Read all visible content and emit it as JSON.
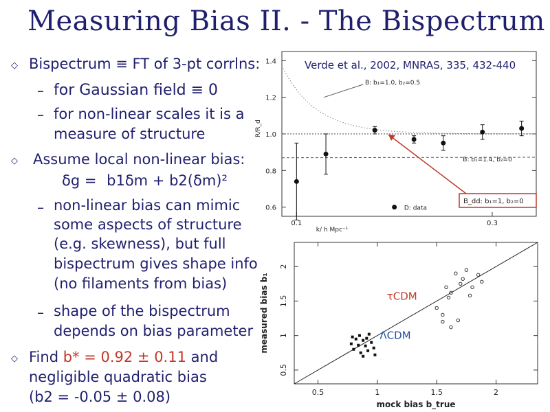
{
  "slide": {
    "title": "Measuring Bias II. - The Bispectrum",
    "bullets": {
      "b1": "Bispectrum ≡ FT of 3-pt corrlns:",
      "b1_s1": "for Gaussian field ≡ 0",
      "b1_s2a": "for non-linear scales it is a",
      "b1_s2b": "measure of structure",
      "b2": "Assume local non-linear bias:",
      "b2_eq_lhs": "δg =",
      "b2_eq_rhs": "b1δm + b2(δm)²",
      "b2_s1a": "non-linear bias can mimic",
      "b2_s1b": "some aspects of structure",
      "b2_s1c": "(e.g. skewness), but full",
      "b2_s1d": "bispectrum gives shape info",
      "b2_s1e": "(no filaments from bias)",
      "b2_s2a": "shape of the bispectrum",
      "b2_s2b": "depends on bias parameter",
      "b3_pre": "Find",
      "b3_val": "b* = 0.92 ± 0.11",
      "b3_post": "and",
      "b3_line2": "negligible quadratic bias",
      "b3_line3": "(b2 = -0.05 ± 0.08)"
    },
    "reference": "Verde et al., 2002, MNRAS, 335, 432-440",
    "colors": {
      "text": "#1f1f6e",
      "highlight": "#c0392b",
      "box": "#c0392b"
    }
  },
  "top_plot": {
    "ylabel": "R/R_d",
    "xlabel": "k/ h Mpc⁻¹",
    "y_ticks": [
      "1.4",
      "1.2",
      "1.0",
      "0.8",
      "0.6"
    ],
    "x_ticks": [
      "0.1",
      "0.3"
    ],
    "legend_upper": "B: b₁=1.0, b₂=0.5",
    "legend_lower": "B: b₁=1.4, b₂=0",
    "legend_data": "D: data",
    "boxed_label": "B_dd: b₁=1, b₂=0"
  },
  "bottom_plot": {
    "ylabel": "measured bias b₁",
    "xlabel": "mock bias b_true",
    "y_ticks": [
      "2",
      "1.5",
      "1",
      "0.5"
    ],
    "x_ticks": [
      "0.5",
      "1",
      "1.5",
      "2"
    ],
    "label_tcdm": "τCDM",
    "label_lcdm": "ΛCDM"
  },
  "chart_data": [
    {
      "type": "scatter",
      "title": "",
      "xlabel": "k/ h Mpc⁻¹",
      "ylabel": "R/R_d",
      "ylim": [
        0.55,
        1.45
      ],
      "x_tick_labels": [
        "0.1",
        "0.3"
      ],
      "series": [
        {
          "name": "D: data",
          "points": [
            {
              "x": 0.1,
              "y": 0.74,
              "err": 0.21
            },
            {
              "x": 0.13,
              "y": 0.89,
              "err": 0.11
            },
            {
              "x": 0.18,
              "y": 1.02,
              "err": 0.02
            },
            {
              "x": 0.22,
              "y": 0.97,
              "err": 0.02
            },
            {
              "x": 0.25,
              "y": 0.95,
              "err": 0.04
            },
            {
              "x": 0.29,
              "y": 1.01,
              "err": 0.04
            },
            {
              "x": 0.33,
              "y": 1.03,
              "err": 0.04
            }
          ]
        }
      ],
      "grid": false
    },
    {
      "type": "scatter",
      "title": "",
      "xlabel": "mock bias b_true",
      "ylabel": "measured bias b₁",
      "xlim": [
        0.3,
        2.35
      ],
      "ylim": [
        0.3,
        2.35
      ],
      "series": [
        {
          "name": "ΛCDM",
          "points": [
            [
              0.78,
              0.88
            ],
            [
              0.82,
              0.95
            ],
            [
              0.85,
              1.0
            ],
            [
              0.88,
              0.93
            ],
            [
              0.9,
              0.85
            ],
            [
              0.92,
              0.78
            ],
            [
              0.8,
              0.8
            ],
            [
              0.86,
              0.75
            ],
            [
              0.95,
              0.9
            ],
            [
              0.97,
              0.82
            ],
            [
              0.84,
              0.86
            ],
            [
              0.93,
              1.02
            ],
            [
              0.88,
              0.7
            ],
            [
              0.98,
              0.72
            ],
            [
              0.79,
              0.98
            ],
            [
              0.91,
              0.96
            ]
          ]
        },
        {
          "name": "τCDM",
          "points": [
            [
              1.5,
              1.4
            ],
            [
              1.55,
              1.3
            ],
            [
              1.6,
              1.55
            ],
            [
              1.62,
              1.62
            ],
            [
              1.7,
              1.75
            ],
            [
              1.72,
              1.82
            ],
            [
              1.66,
              1.9
            ],
            [
              1.75,
              1.95
            ],
            [
              1.8,
              1.7
            ],
            [
              1.85,
              1.88
            ],
            [
              1.55,
              1.2
            ],
            [
              1.62,
              1.12
            ],
            [
              1.68,
              1.22
            ],
            [
              1.78,
              1.58
            ],
            [
              1.58,
              1.7
            ],
            [
              1.88,
              1.78
            ]
          ]
        }
      ],
      "reference_line": "y = x",
      "grid": false
    }
  ]
}
